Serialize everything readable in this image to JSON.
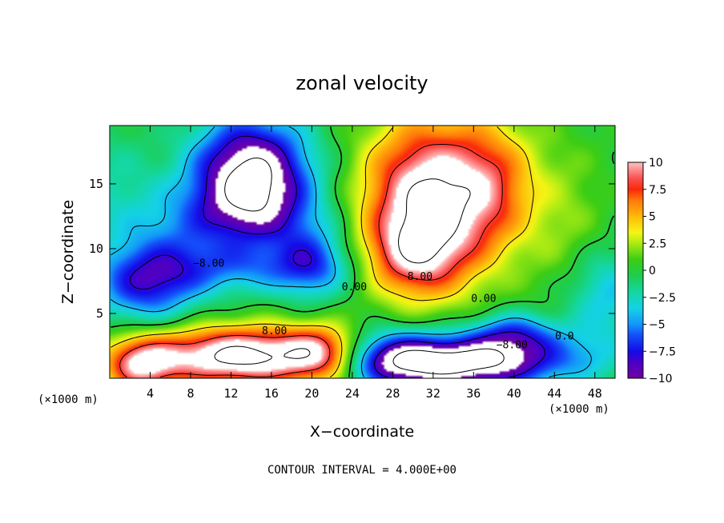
{
  "chart_data": {
    "type": "heatmap",
    "title": "zonal velocity",
    "xlabel": "X−coordinate",
    "ylabel": "Z−coordinate",
    "x_unit_left": "(×1000 m)",
    "x_unit_right": "(×1000 m)",
    "xlim": [
      0,
      50
    ],
    "ylim": [
      0,
      19.5
    ],
    "xticks": [
      4,
      8,
      12,
      16,
      20,
      24,
      28,
      32,
      36,
      40,
      44,
      48
    ],
    "xtick_labels": [
      "4",
      "8",
      "12",
      "16",
      "20",
      "24",
      "28",
      "32",
      "36",
      "40",
      "44",
      "48"
    ],
    "yticks": [
      5,
      10,
      15
    ],
    "ytick_labels": [
      "5",
      "10",
      "15"
    ],
    "colorbar": {
      "vmin": -10,
      "vmax": 10,
      "colormap": "rainbow (purple → blue → cyan → green → yellow → orange → red → pink)",
      "over_color": "#ffffff",
      "under_color": "#ffffff",
      "ticks": [
        10,
        7.5,
        5,
        2.5,
        0,
        -2.5,
        -5,
        -7.5,
        -10
      ],
      "tick_labels": [
        "10",
        "7.5",
        "5",
        "2.5",
        "0",
        "−2.5",
        "−5",
        "−7.5",
        "−10"
      ]
    },
    "contour_interval": 4,
    "contour_labels": [
      {
        "text": "−8.00",
        "x": 9.8,
        "z": 8.6
      },
      {
        "text": "0.00",
        "x": 24.2,
        "z": 6.8
      },
      {
        "text": "8.00",
        "x": 30.7,
        "z": 7.6
      },
      {
        "text": "0.00",
        "x": 37.0,
        "z": 5.9
      },
      {
        "text": "8.00",
        "x": 16.3,
        "z": 3.4
      },
      {
        "text": "−8.00",
        "x": 39.8,
        "z": 2.3
      },
      {
        "text": "0.0",
        "x": 45.0,
        "z": 3.0
      }
    ],
    "field_features": [
      {
        "x": 14,
        "z": 15.8,
        "amp": -12.5,
        "sx": 4.0,
        "sz": 3.0
      },
      {
        "x": 14,
        "z": 12.5,
        "amp": -4.0,
        "sx": 5.0,
        "sz": 2.0
      },
      {
        "x": 6,
        "z": 10.5,
        "amp": -3.0,
        "sx": 3.5,
        "sz": 2.8
      },
      {
        "x": 3.5,
        "z": 7.0,
        "amp": -6.0,
        "sx": 3.5,
        "sz": 2.0
      },
      {
        "x": 13,
        "z": 8.5,
        "amp": -4.0,
        "sx": 7.0,
        "sz": 1.4
      },
      {
        "x": 20,
        "z": 9.0,
        "amp": -5.0,
        "sx": 2.5,
        "sz": 2.0
      },
      {
        "x": 0,
        "z": 14.0,
        "amp": -2.0,
        "sx": 3.0,
        "sz": 4.0
      },
      {
        "x": 31.5,
        "z": 13.5,
        "amp": 12.5,
        "sx": 4.5,
        "sz": 4.5
      },
      {
        "x": 30,
        "z": 9.5,
        "amp": 5.0,
        "sx": 3.0,
        "sz": 2.0
      },
      {
        "x": 38,
        "z": 15.0,
        "amp": 5.0,
        "sx": 3.0,
        "sz": 3.5
      },
      {
        "x": 13,
        "z": 1.7,
        "amp": 13.0,
        "sx": 6.5,
        "sz": 1.6
      },
      {
        "x": 3,
        "z": 1.0,
        "amp": 8.0,
        "sx": 2.5,
        "sz": 1.5
      },
      {
        "x": 21,
        "z": 2.0,
        "amp": 6.0,
        "sx": 2.5,
        "sz": 1.5
      },
      {
        "x": 35,
        "z": 1.2,
        "amp": -13.0,
        "sx": 6.5,
        "sz": 1.4
      },
      {
        "x": 28,
        "z": 1.6,
        "amp": -6.0,
        "sx": 3.5,
        "sz": 1.6
      },
      {
        "x": 40,
        "z": 3.4,
        "amp": -6.0,
        "sx": 3.0,
        "sz": 1.2
      },
      {
        "x": 49,
        "z": 6.5,
        "amp": -4.0,
        "sx": 3.0,
        "sz": 2.5
      },
      {
        "x": 47,
        "z": 2.0,
        "amp": -2.0,
        "sx": 3.0,
        "sz": 1.5
      },
      {
        "x": 45,
        "z": 12.0,
        "amp": 2.0,
        "sx": 3.0,
        "sz": 5.0
      }
    ]
  },
  "footer": {
    "contour_note": "CONTOUR INTERVAL =  4.000E+00"
  }
}
